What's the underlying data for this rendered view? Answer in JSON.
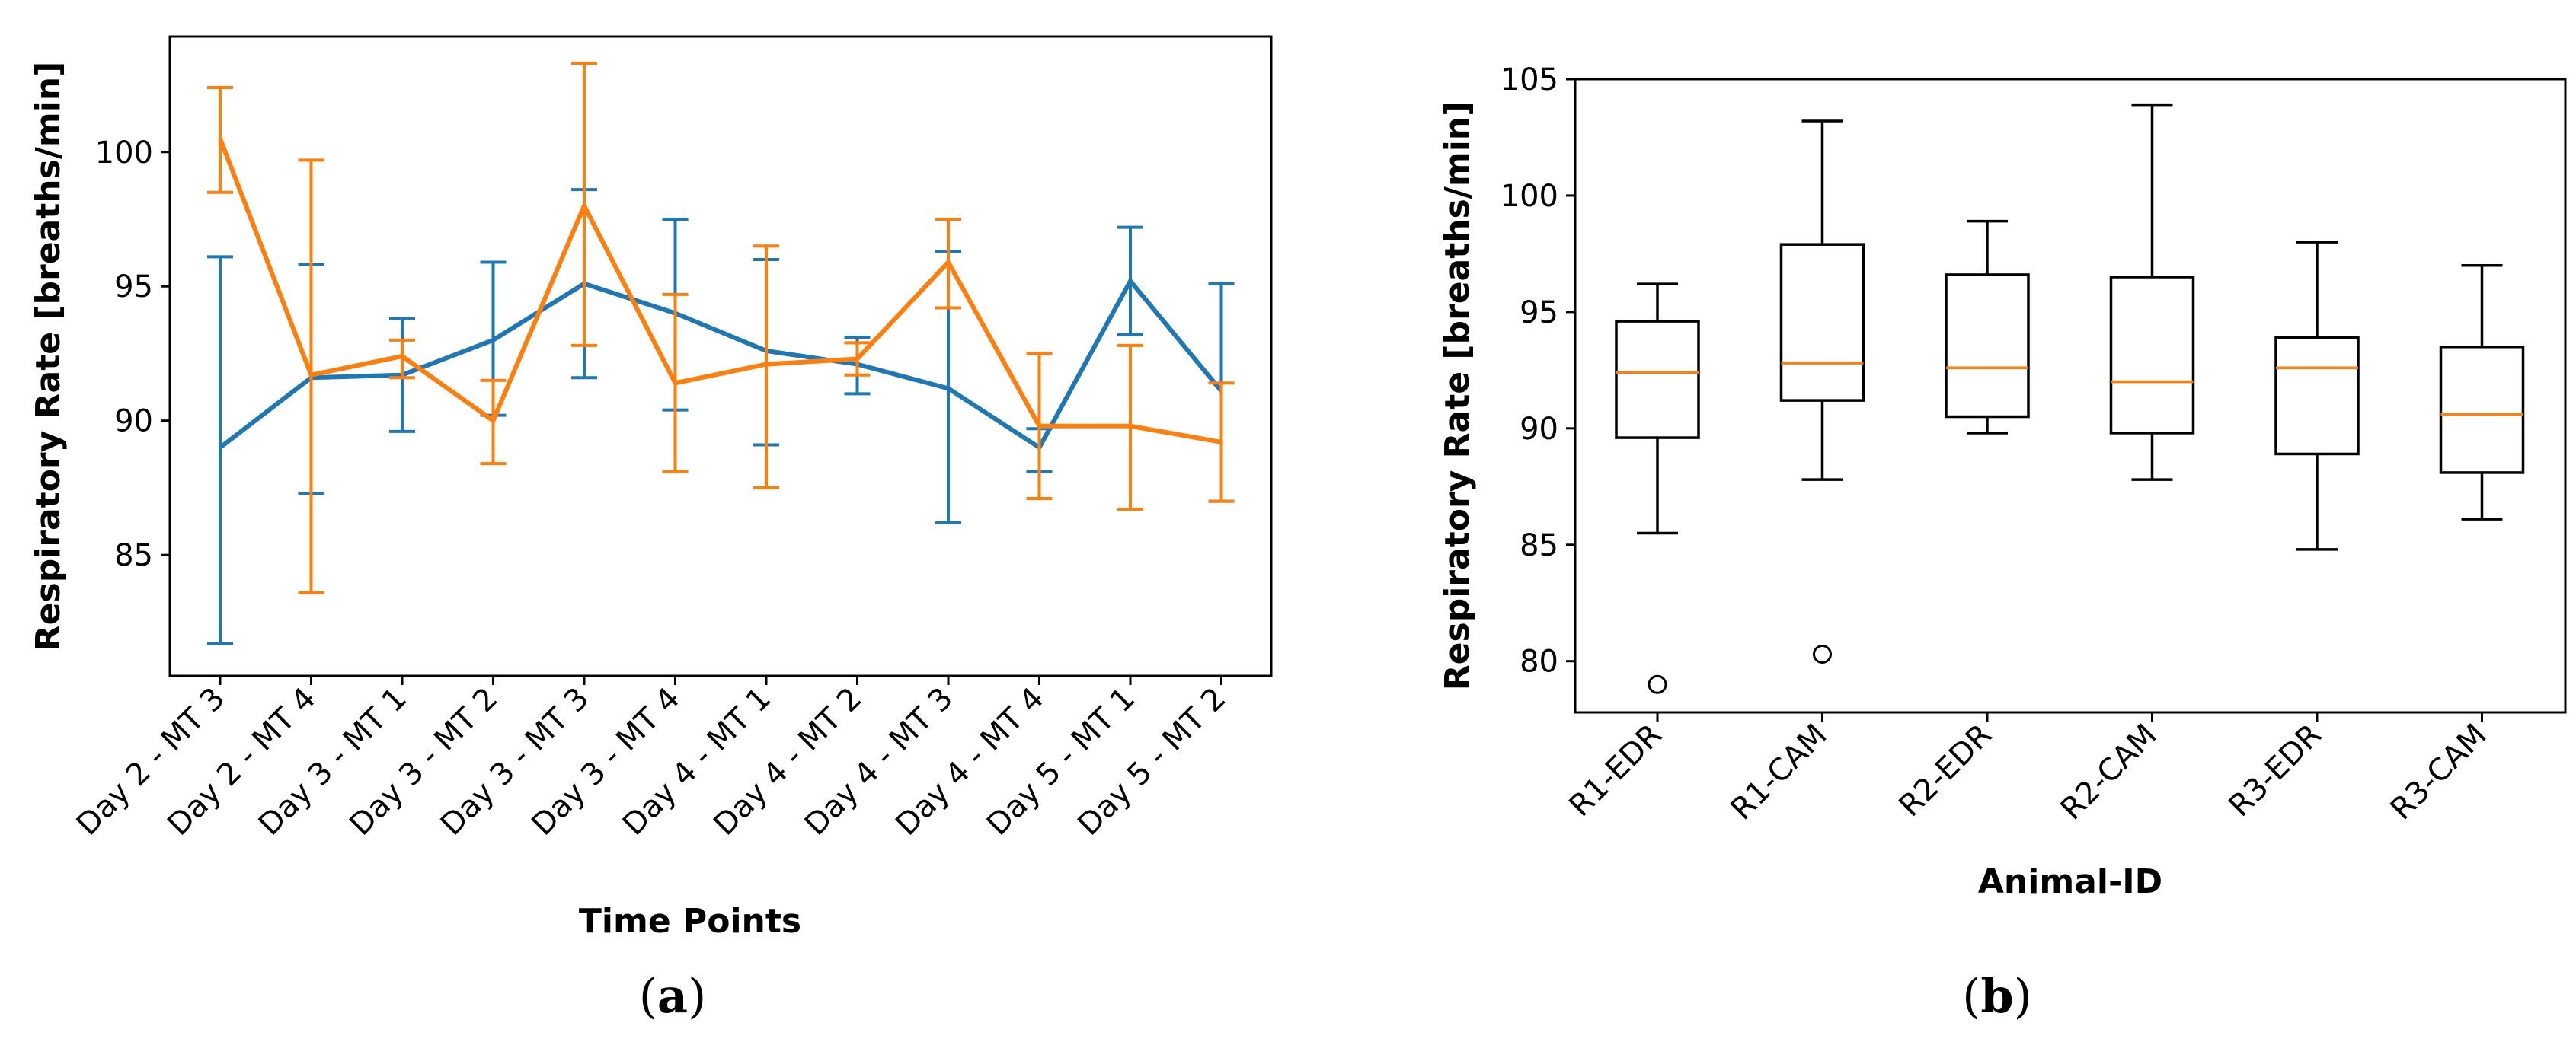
{
  "chart_data": [
    {
      "type": "line",
      "panel_label": "a",
      "title": "",
      "xlabel": "Time Points",
      "ylabel": "Respiratory Rate [breaths/min]",
      "categories": [
        "Day 2 - MT 3",
        "Day 2 - MT 4",
        "Day 3 - MT 1",
        "Day 3 - MT 2",
        "Day 3 - MT 3",
        "Day 3 - MT 4",
        "Day 4 - MT 1",
        "Day 4 - MT 2",
        "Day 4 - MT 3",
        "Day 4 - MT 4",
        "Day 5 - MT 1",
        "Day 5 - MT 2"
      ],
      "ylim": [
        80.5,
        104.3
      ],
      "yticks": [
        85,
        90,
        95,
        100
      ],
      "grid": false,
      "series": [
        {
          "name": "series-blue",
          "color": "#1f77b4",
          "values": [
            89.0,
            91.6,
            91.7,
            93.0,
            95.1,
            94.0,
            92.6,
            92.1,
            91.2,
            89.0,
            95.2,
            91.1
          ],
          "err_low": [
            81.7,
            87.3,
            89.6,
            90.2,
            91.6,
            90.4,
            89.1,
            91.0,
            86.2,
            88.1,
            93.2,
            87.0
          ],
          "err_high": [
            96.1,
            95.8,
            93.8,
            95.9,
            98.6,
            97.5,
            96.0,
            93.1,
            96.3,
            89.7,
            97.2,
            95.1
          ]
        },
        {
          "name": "series-orange",
          "color": "#ff7f0e",
          "values": [
            100.5,
            91.7,
            92.4,
            90.0,
            98.0,
            91.4,
            92.1,
            92.3,
            95.9,
            89.8,
            89.8,
            89.2
          ],
          "err_low": [
            98.5,
            83.6,
            91.6,
            88.4,
            92.8,
            88.1,
            87.5,
            91.7,
            94.2,
            87.1,
            86.7,
            87.0
          ],
          "err_high": [
            102.4,
            99.7,
            93.0,
            91.5,
            103.3,
            94.7,
            96.5,
            92.9,
            97.5,
            92.5,
            92.8,
            91.4
          ]
        }
      ]
    },
    {
      "type": "box",
      "panel_label": "b",
      "title": "",
      "xlabel": "Animal-ID",
      "ylabel": "Respiratory Rate [breaths/min]",
      "categories": [
        "R1-EDR",
        "R1-CAM",
        "R2-EDR",
        "R2-CAM",
        "R3-EDR",
        "R3-CAM"
      ],
      "ylim": [
        77.8,
        105.0
      ],
      "yticks": [
        80,
        85,
        90,
        95,
        100,
        105
      ],
      "grid": false,
      "box_color": "#000000",
      "median_color": "#ff7f0e",
      "boxes": [
        {
          "whisker_low": 85.5,
          "q1": 89.6,
          "median": 92.4,
          "q3": 94.6,
          "whisker_high": 96.2,
          "outliers": [
            79.0
          ]
        },
        {
          "whisker_low": 87.8,
          "q1": 91.2,
          "median": 92.8,
          "q3": 97.9,
          "whisker_high": 103.2,
          "outliers": [
            80.3
          ]
        },
        {
          "whisker_low": 89.8,
          "q1": 90.5,
          "median": 92.6,
          "q3": 96.6,
          "whisker_high": 98.9,
          "outliers": []
        },
        {
          "whisker_low": 87.8,
          "q1": 89.8,
          "median": 92.0,
          "q3": 96.5,
          "whisker_high": 103.9,
          "outliers": []
        },
        {
          "whisker_low": 84.8,
          "q1": 88.9,
          "median": 92.6,
          "q3": 93.9,
          "whisker_high": 98.0,
          "outliers": []
        },
        {
          "whisker_low": 86.1,
          "q1": 88.1,
          "median": 90.6,
          "q3": 93.5,
          "whisker_high": 97.0,
          "outliers": []
        }
      ]
    }
  ]
}
